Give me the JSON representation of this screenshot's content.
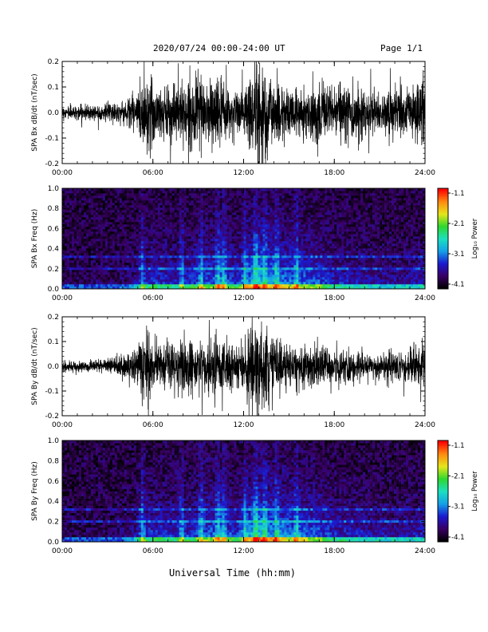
{
  "header": {
    "date_range": "2020/07/24  00:00-24:00 UT",
    "page": "Page 1/1"
  },
  "footer": {
    "xlabel": "Universal Time (hh:mm)"
  },
  "colors": {
    "trace": "#000000",
    "colorbar": [
      "#000000",
      "#3a0066",
      "#1a1ad0",
      "#14a0e8",
      "#1ce0c0",
      "#2ed82e",
      "#e6e61a",
      "#ff8a10",
      "#ff0000"
    ]
  },
  "chart_data": [
    {
      "id": "bx-waveform",
      "type": "line",
      "ylabel": "SPA Bx dB/dt (nT/sec)",
      "x_range": [
        0,
        24
      ],
      "xticks": [
        "00:00",
        "06:00",
        "12:00",
        "18:00",
        "24:00"
      ],
      "ylim": [
        -0.2,
        0.2
      ],
      "yticks": [
        "-0.2",
        "-0.1",
        "0.0",
        "0.1",
        "0.2"
      ],
      "envelope": {
        "hours": [
          0,
          2,
          3,
          4,
          5,
          5.5,
          6,
          7,
          8,
          9,
          10,
          11,
          12,
          12.7,
          13.5,
          14,
          15,
          16,
          17,
          18,
          19,
          20,
          21,
          22,
          23,
          24
        ],
        "amplitude": [
          0.02,
          0.03,
          0.03,
          0.04,
          0.08,
          0.15,
          0.12,
          0.09,
          0.12,
          0.1,
          0.14,
          0.08,
          0.09,
          0.2,
          0.18,
          0.12,
          0.08,
          0.08,
          0.1,
          0.08,
          0.1,
          0.09,
          0.07,
          0.09,
          0.1,
          0.12
        ]
      }
    },
    {
      "id": "bx-spectrogram",
      "type": "heatmap",
      "ylabel": "SPA Bx Freq (Hz)",
      "x_range": [
        0,
        24
      ],
      "xticks": [
        "00:00",
        "06:00",
        "12:00",
        "18:00",
        "24:00"
      ],
      "ylim": [
        0,
        1.0
      ],
      "yticks": [
        "0.0",
        "0.2",
        "0.4",
        "0.6",
        "0.8",
        "1.0"
      ],
      "colorbar": {
        "label": "Log₁₀ Power",
        "ticks": [
          "-1.1",
          "-2.1",
          "-3.1",
          "-4.1"
        ],
        "range": [
          -4.1,
          -1.1
        ]
      }
    },
    {
      "id": "by-waveform",
      "type": "line",
      "ylabel": "SPA By dB/dt (nT/sec)",
      "x_range": [
        0,
        24
      ],
      "xticks": [
        "00:00",
        "06:00",
        "12:00",
        "18:00",
        "24:00"
      ],
      "ylim": [
        -0.2,
        0.2
      ],
      "yticks": [
        "-0.2",
        "-0.1",
        "0.0",
        "0.1",
        "0.2"
      ],
      "envelope": {
        "hours": [
          0,
          2,
          3,
          4,
          5,
          5.5,
          6,
          7,
          8,
          9,
          10,
          11,
          12,
          12.7,
          13.5,
          14,
          15,
          16,
          17,
          18,
          19,
          20,
          21,
          22,
          23,
          24
        ],
        "amplitude": [
          0.02,
          0.02,
          0.03,
          0.04,
          0.07,
          0.14,
          0.1,
          0.07,
          0.1,
          0.09,
          0.12,
          0.08,
          0.08,
          0.17,
          0.15,
          0.1,
          0.07,
          0.07,
          0.08,
          0.06,
          0.06,
          0.05,
          0.05,
          0.06,
          0.06,
          0.08
        ]
      }
    },
    {
      "id": "by-spectrogram",
      "type": "heatmap",
      "ylabel": "SPA By Freq (Hz)",
      "x_range": [
        0,
        24
      ],
      "xticks": [
        "00:00",
        "06:00",
        "12:00",
        "18:00",
        "24:00"
      ],
      "ylim": [
        0,
        1.0
      ],
      "yticks": [
        "0.0",
        "0.2",
        "0.4",
        "0.6",
        "0.8",
        "1.0"
      ],
      "colorbar": {
        "label": "Log₁₀ Power",
        "ticks": [
          "-1.1",
          "-2.1",
          "-3.1",
          "-4.1"
        ],
        "range": [
          -4.1,
          -1.1
        ]
      }
    }
  ]
}
